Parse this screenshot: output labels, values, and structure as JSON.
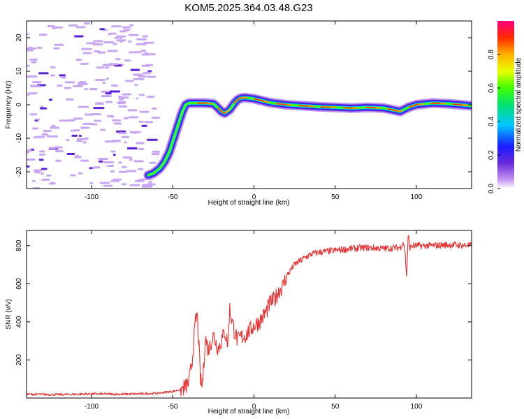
{
  "title": "KOM5.2025.364.03.48.G23",
  "chart_data": [
    {
      "type": "heatmap",
      "name": "spectrogram",
      "xlabel": "Height of straight line (km)",
      "ylabel": "Frequency (Hz)",
      "xlim": [
        -140,
        134
      ],
      "ylim": [
        -25,
        25
      ],
      "xticks": [
        -100,
        -50,
        0,
        50,
        100
      ],
      "yticks": [
        -20,
        -10,
        0,
        10,
        20
      ],
      "colorbar": {
        "label": "Normalized spectral amplitude",
        "range": [
          0,
          1
        ],
        "ticks": [
          "0.0",
          "0.2",
          "0.4",
          "0.6",
          "0.8"
        ]
      },
      "signal_track": {
        "x": [
          -65,
          -62,
          -58,
          -55,
          -52,
          -50,
          -48,
          -46,
          -44,
          -42,
          -40,
          -35,
          -30,
          -25,
          -22,
          -20,
          -18,
          -15,
          -12,
          -10,
          -8,
          -5,
          0,
          10,
          20,
          30,
          40,
          50,
          60,
          70,
          80,
          85,
          90,
          95,
          100,
          110,
          120,
          134
        ],
        "frequency_hz": [
          -21,
          -20.5,
          -19,
          -17,
          -14,
          -11,
          -8,
          -5,
          -2,
          0,
          0.5,
          0.5,
          0.5,
          0.3,
          -1,
          -2,
          -2.5,
          -1.5,
          0.5,
          1.5,
          2,
          2.1,
          1.8,
          0.6,
          0,
          -0.3,
          -0.6,
          -0.8,
          -1,
          -0.8,
          -1,
          -1.5,
          -2,
          -0.8,
          0,
          0.5,
          0.3,
          -0.3
        ]
      },
      "noise_region_x": [
        -140,
        -60
      ]
    },
    {
      "type": "line",
      "name": "snr",
      "xlabel": "Height of straight line (km)",
      "ylabel": "SNR (v/v)",
      "xlim": [
        -140,
        134
      ],
      "ylim": [
        0,
        880
      ],
      "xticks": [
        -100,
        -50,
        0,
        50,
        100
      ],
      "yticks": [
        200,
        400,
        600,
        800
      ],
      "color": "#e83030",
      "x": [
        -140,
        -120,
        -100,
        -80,
        -60,
        -50,
        -45,
        -42,
        -40,
        -38,
        -37,
        -36,
        -35,
        -34,
        -33,
        -32,
        -31,
        -30,
        -28,
        -25,
        -22,
        -20,
        -18,
        -16,
        -15,
        -12,
        -10,
        -8,
        -5,
        -2,
        0,
        3,
        5,
        8,
        10,
        13,
        15,
        18,
        20,
        25,
        30,
        35,
        40,
        45,
        50,
        60,
        70,
        80,
        90,
        92,
        93,
        94,
        95,
        96,
        98,
        100,
        110,
        120,
        134
      ],
      "y": [
        20,
        18,
        22,
        20,
        25,
        35,
        45,
        60,
        80,
        200,
        300,
        400,
        440,
        300,
        100,
        60,
        150,
        320,
        250,
        330,
        260,
        300,
        350,
        280,
        470,
        350,
        300,
        320,
        330,
        360,
        380,
        400,
        420,
        460,
        500,
        520,
        560,
        590,
        640,
        700,
        730,
        755,
        765,
        770,
        775,
        785,
        790,
        785,
        790,
        820,
        770,
        640,
        860,
        790,
        800,
        800,
        800,
        805,
        800
      ]
    }
  ]
}
